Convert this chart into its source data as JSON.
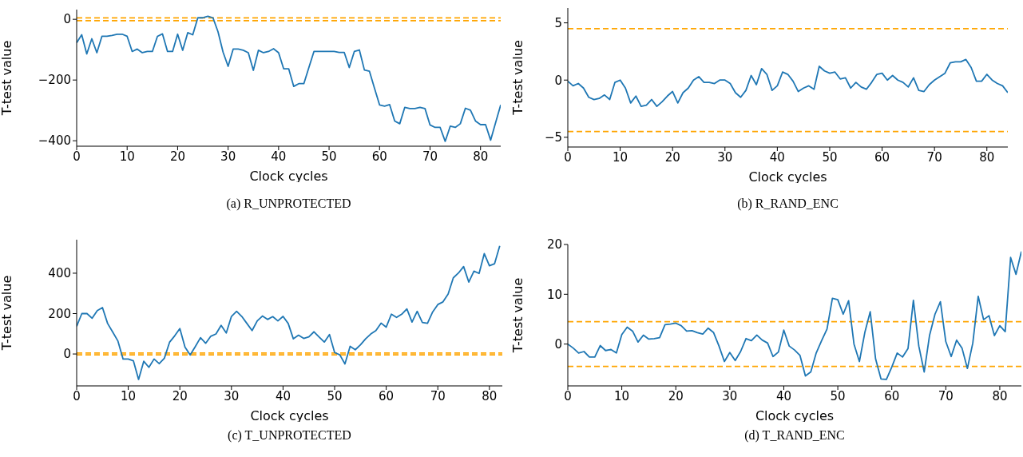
{
  "chart_data": [
    {
      "type": "line",
      "xlabel": "Clock cycles",
      "ylabel": "T-test value",
      "annotations": [
        "(a) R_UNPROTECTED"
      ],
      "xlim": [
        0,
        84
      ],
      "ylim": [
        -418,
        32
      ],
      "xticks": [
        0,
        10,
        20,
        30,
        40,
        50,
        60,
        70,
        80
      ],
      "yticks": [
        {
          "value": -400,
          "label": "−400"
        },
        {
          "value": -200,
          "label": "−200"
        },
        0
      ],
      "x": [
        0,
        1,
        2,
        3,
        4,
        5,
        6,
        7,
        8,
        9,
        10,
        11,
        12,
        13,
        14,
        15,
        16,
        17,
        18,
        19,
        20,
        21,
        22,
        23,
        24,
        25,
        26,
        27,
        28,
        29,
        30,
        31,
        32,
        33,
        34,
        35,
        36,
        37,
        38,
        39,
        40,
        41,
        42,
        43,
        44,
        45,
        46,
        47,
        48,
        49,
        50,
        51,
        52,
        53,
        54,
        55,
        56,
        57,
        58,
        59,
        60,
        61,
        62,
        63,
        64,
        65,
        66,
        67,
        68,
        69,
        70,
        71,
        72,
        73,
        74,
        75,
        76,
        77,
        78,
        79,
        80,
        81,
        82,
        83,
        84
      ],
      "series": [
        {
          "color": "#1f77b4",
          "values": [
            -77,
            -51,
            -114,
            -64,
            -110,
            -56,
            -56,
            -53,
            -49,
            -49,
            -56,
            -106,
            -98,
            -110,
            -106,
            -106,
            -56,
            -48,
            -106,
            -106,
            -49,
            -102,
            -44,
            -51,
            5,
            5,
            10,
            5,
            -41,
            -108,
            -155,
            -98,
            -98,
            -102,
            -110,
            -168,
            -102,
            -110,
            -106,
            -97,
            -110,
            -163,
            -163,
            -221,
            -212,
            -212,
            -159,
            -106,
            -106,
            -106,
            -106,
            -106,
            -109,
            -109,
            -159,
            -106,
            -101,
            -167,
            -171,
            -227,
            -282,
            -286,
            -281,
            -335,
            -344,
            -290,
            -294,
            -294,
            -290,
            -294,
            -348,
            -356,
            -356,
            -402,
            -352,
            -356,
            -344,
            -293,
            -299,
            -335,
            -347,
            -347,
            -398,
            -340,
            -282
          ]
        }
      ],
      "ref_lines": [
        {
          "axis": "y",
          "value": 4.5,
          "color": "#ffa500",
          "line_style": "dashed"
        },
        {
          "axis": "y",
          "value": -4.5,
          "color": "#ffa500",
          "line_style": "dashed"
        }
      ]
    },
    {
      "type": "line",
      "xlabel": "Clock cycles",
      "ylabel": "T-test value",
      "annotations": [
        "(b) R_RAND_ENC"
      ],
      "xlim": [
        0,
        84
      ],
      "ylim": [
        -5.85,
        6.3
      ],
      "xticks": [
        0,
        10,
        20,
        30,
        40,
        50,
        60,
        70,
        80
      ],
      "yticks": [
        {
          "value": -5,
          "label": "−5"
        },
        0,
        5
      ],
      "x": [
        0,
        1,
        2,
        3,
        4,
        5,
        6,
        7,
        8,
        9,
        10,
        11,
        12,
        13,
        14,
        15,
        16,
        17,
        18,
        19,
        20,
        21,
        22,
        23,
        24,
        25,
        26,
        27,
        28,
        29,
        30,
        31,
        32,
        33,
        34,
        35,
        36,
        37,
        38,
        39,
        40,
        41,
        42,
        43,
        44,
        45,
        46,
        47,
        48,
        49,
        50,
        51,
        52,
        53,
        54,
        55,
        56,
        57,
        58,
        59,
        60,
        61,
        62,
        63,
        64,
        65,
        66,
        67,
        68,
        69,
        70,
        71,
        72,
        73,
        74,
        75,
        76,
        77,
        78,
        79,
        80,
        81,
        82,
        83,
        84
      ],
      "series": [
        {
          "color": "#1f77b4",
          "values": [
            -0.1,
            -0.5,
            -0.3,
            -0.7,
            -1.5,
            -1.7,
            -1.6,
            -1.3,
            -1.7,
            -0.2,
            0,
            -0.7,
            -2.0,
            -1.4,
            -2.3,
            -2.2,
            -1.7,
            -2.3,
            -1.9,
            -1.4,
            -1.0,
            -2.0,
            -1.1,
            -0.7,
            0,
            0.3,
            -0.2,
            -0.2,
            -0.3,
            0,
            0,
            -0.3,
            -1.1,
            -1.5,
            -0.9,
            0.4,
            -0.4,
            1.0,
            0.5,
            -0.9,
            -0.5,
            0.7,
            0.5,
            -0.1,
            -1.0,
            -0.7,
            -0.5,
            -0.8,
            1.2,
            0.8,
            0.6,
            0.7,
            0.1,
            0.2,
            -0.7,
            -0.2,
            -0.6,
            -0.8,
            -0.2,
            0.5,
            0.6,
            0,
            0.4,
            0,
            -0.2,
            -0.6,
            0.2,
            -0.9,
            -1.0,
            -0.4,
            0,
            0.3,
            0.6,
            1.5,
            1.6,
            1.6,
            1.8,
            1.1,
            -0.1,
            -0.1,
            0.5,
            0,
            -0.3,
            -0.5,
            -1.1
          ]
        }
      ],
      "ref_lines": [
        {
          "axis": "y",
          "value": 4.5,
          "color": "#ffa500",
          "line_style": "dashed"
        },
        {
          "axis": "y",
          "value": -4.5,
          "color": "#ffa500",
          "line_style": "dashed"
        }
      ]
    },
    {
      "type": "line",
      "xlabel": "Clock cycles",
      "ylabel": "T-test value",
      "annotations": [
        "(c) T_UNPROTECTED"
      ],
      "xlim": [
        0,
        82.5
      ],
      "ylim": [
        -158,
        566
      ],
      "xticks": [
        0,
        10,
        20,
        30,
        40,
        50,
        60,
        70,
        80
      ],
      "yticks": [
        0,
        200,
        400
      ],
      "x": [
        0,
        1,
        2,
        3,
        4,
        5,
        6,
        7,
        8,
        9,
        10,
        11,
        12,
        13,
        14,
        15,
        16,
        17,
        18,
        19,
        20,
        21,
        22,
        23,
        24,
        25,
        26,
        27,
        28,
        29,
        30,
        31,
        32,
        33,
        34,
        35,
        36,
        37,
        38,
        39,
        40,
        41,
        42,
        43,
        44,
        45,
        46,
        47,
        48,
        49,
        50,
        51,
        52,
        53,
        54,
        55,
        56,
        57,
        58,
        59,
        60,
        61,
        62,
        63,
        64,
        65,
        66,
        67,
        68,
        69,
        70,
        71,
        72,
        73,
        74,
        75,
        76,
        77,
        78,
        79,
        80,
        81,
        82
      ],
      "series": [
        {
          "color": "#1f77b4",
          "values": [
            137,
            200,
            200,
            177,
            215,
            230,
            151,
            108,
            64,
            -25,
            -25,
            -34,
            -126,
            -36,
            -66,
            -25,
            -48,
            -21,
            58,
            90,
            126,
            34,
            -5,
            37,
            81,
            53,
            88,
            99,
            142,
            104,
            186,
            211,
            186,
            151,
            116,
            164,
            188,
            171,
            185,
            164,
            186,
            151,
            75,
            93,
            77,
            85,
            110,
            84,
            59,
            96,
            7,
            -4,
            -49,
            38,
            21,
            45,
            75,
            99,
            116,
            153,
            133,
            197,
            181,
            197,
            223,
            158,
            211,
            156,
            152,
            208,
            245,
            258,
            297,
            377,
            401,
            433,
            356,
            410,
            399,
            497,
            437,
            447,
            535
          ]
        }
      ],
      "ref_lines": [
        {
          "axis": "y",
          "value": 4.5,
          "color": "#ffa500",
          "line_style": "dashed"
        },
        {
          "axis": "y",
          "value": -4.5,
          "color": "#ffa500",
          "line_style": "dashed"
        }
      ]
    },
    {
      "type": "line",
      "xlabel": "Clock cycles",
      "ylabel": "T-test value",
      "annotations": [
        "(d) T_RAND_ENC"
      ],
      "xlim": [
        0,
        84
      ],
      "ylim": [
        -8.4,
        20
      ],
      "xticks": [
        0,
        10,
        20,
        30,
        40,
        50,
        60,
        70,
        80
      ],
      "yticks": [
        0,
        10,
        20
      ],
      "x": [
        0,
        1,
        2,
        3,
        4,
        5,
        6,
        7,
        8,
        9,
        10,
        11,
        12,
        13,
        14,
        15,
        16,
        17,
        18,
        19,
        20,
        21,
        22,
        23,
        24,
        25,
        26,
        27,
        28,
        29,
        30,
        31,
        32,
        33,
        34,
        35,
        36,
        37,
        38,
        39,
        40,
        41,
        42,
        43,
        44,
        45,
        46,
        47,
        48,
        49,
        50,
        51,
        52,
        53,
        54,
        55,
        56,
        57,
        58,
        59,
        60,
        61,
        62,
        63,
        64,
        65,
        66,
        67,
        68,
        69,
        70,
        71,
        72,
        73,
        74,
        75,
        76,
        77,
        78,
        79,
        80,
        81,
        82,
        83,
        84
      ],
      "series": [
        {
          "color": "#1f77b4",
          "values": [
            0,
            -0.8,
            -1.8,
            -1.5,
            -2.6,
            -2.6,
            -0.3,
            -1.3,
            -1.1,
            -1.8,
            1.9,
            3.4,
            2.6,
            0.4,
            1.8,
            1.0,
            1.1,
            1.3,
            3.9,
            4.0,
            4.2,
            3.7,
            2.6,
            2.7,
            2.3,
            2.0,
            3.2,
            2.3,
            -0.4,
            -3.5,
            -1.7,
            -3.3,
            -1.5,
            1.1,
            0.7,
            1.8,
            0.8,
            0.2,
            -2.5,
            -1.6,
            2.8,
            -0.4,
            -1.2,
            -2.3,
            -6.4,
            -5.6,
            -1.8,
            0.7,
            3.0,
            9.2,
            8.9,
            6.0,
            8.7,
            0,
            -3.5,
            2.3,
            6.5,
            -3.0,
            -7.0,
            -7.1,
            -4.6,
            -1.8,
            -2.6,
            -0.9,
            8.8,
            -0.4,
            -5.6,
            1.8,
            6.0,
            8.5,
            0.5,
            -2.5,
            0.8,
            -0.8,
            -4.9,
            0.2,
            9.6,
            4.9,
            5.7,
            1.7,
            3.7,
            2.5,
            17.4,
            14.0,
            18.6
          ]
        }
      ],
      "ref_lines": [
        {
          "axis": "y",
          "value": 4.5,
          "color": "#ffa500",
          "line_style": "dashed"
        },
        {
          "axis": "y",
          "value": -4.5,
          "color": "#ffa500",
          "line_style": "dashed"
        }
      ]
    }
  ]
}
